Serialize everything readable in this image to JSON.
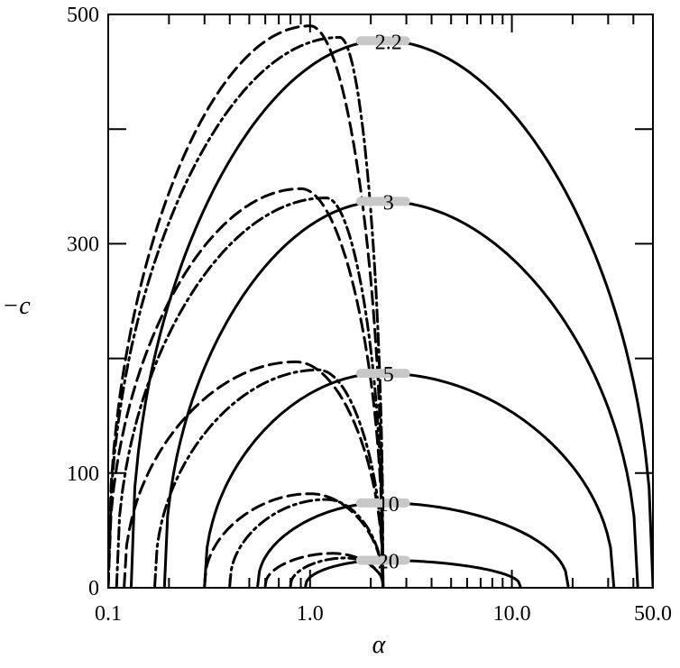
{
  "chart_data": {
    "type": "line",
    "title": "",
    "xlabel": "α",
    "ylabel": "−c",
    "xscale": "log",
    "xlim": [
      0.1,
      50.0
    ],
    "ylim": [
      0,
      500
    ],
    "x_tick_labels": [
      "0.1",
      "1.0",
      "10.0",
      "50.0"
    ],
    "x_tick_values": [
      0.1,
      1.0,
      10.0,
      50.0
    ],
    "y_tick_labels": [
      "0",
      "100",
      "300",
      "500"
    ],
    "y_tick_values": [
      0,
      100,
      300,
      500
    ],
    "y_minor_ticks": [
      200,
      400
    ],
    "grid": false,
    "legend": "none",
    "colors": {
      "line": "#000000",
      "label_backdrop": "#c8c8c8"
    },
    "contour_labels": [
      "2.2",
      "3",
      "5",
      "10",
      "20"
    ],
    "series": [
      {
        "style": "solid",
        "values": [
          {
            "label": "2.2",
            "x0": 0.13,
            "x1": 50.0,
            "peak_x": 2.3,
            "peak_y": 477
          },
          {
            "label": "3",
            "x0": 0.19,
            "x1": 42.0,
            "peak_x": 2.3,
            "peak_y": 337
          },
          {
            "label": "5",
            "x0": 0.3,
            "x1": 32.0,
            "peak_x": 2.3,
            "peak_y": 187
          },
          {
            "label": "10",
            "x0": 0.55,
            "x1": 19.0,
            "peak_x": 2.3,
            "peak_y": 74
          },
          {
            "label": "20",
            "x0": 0.95,
            "x1": 11.0,
            "peak_x": 2.3,
            "peak_y": 24
          }
        ]
      },
      {
        "style": "dashdot",
        "values": [
          {
            "label": "2.2",
            "x0": 0.1,
            "x1": 2.3,
            "peak_x": 1.4,
            "peak_y": 480
          },
          {
            "label": "3",
            "x0": 0.11,
            "x1": 2.3,
            "peak_x": 1.2,
            "peak_y": 340
          },
          {
            "label": "5",
            "x0": 0.17,
            "x1": 2.3,
            "peak_x": 1.1,
            "peak_y": 190
          },
          {
            "label": "10",
            "x0": 0.4,
            "x1": 2.3,
            "peak_x": 1.2,
            "peak_y": 77
          },
          {
            "label": "20",
            "x0": 0.8,
            "x1": 2.3,
            "peak_x": 1.5,
            "peak_y": 26
          }
        ]
      },
      {
        "style": "dashed",
        "values": [
          {
            "label": "2.2",
            "x0": 0.1,
            "x1": 2.3,
            "peak_x": 1.0,
            "peak_y": 490
          },
          {
            "label": "3",
            "x0": 0.1,
            "x1": 2.3,
            "peak_x": 0.9,
            "peak_y": 348
          },
          {
            "label": "5",
            "x0": 0.12,
            "x1": 2.3,
            "peak_x": 0.85,
            "peak_y": 197
          },
          {
            "label": "10",
            "x0": 0.3,
            "x1": 2.3,
            "peak_x": 1.0,
            "peak_y": 82
          },
          {
            "label": "20",
            "x0": 0.6,
            "x1": 2.3,
            "peak_x": 1.3,
            "peak_y": 30
          }
        ]
      }
    ]
  }
}
